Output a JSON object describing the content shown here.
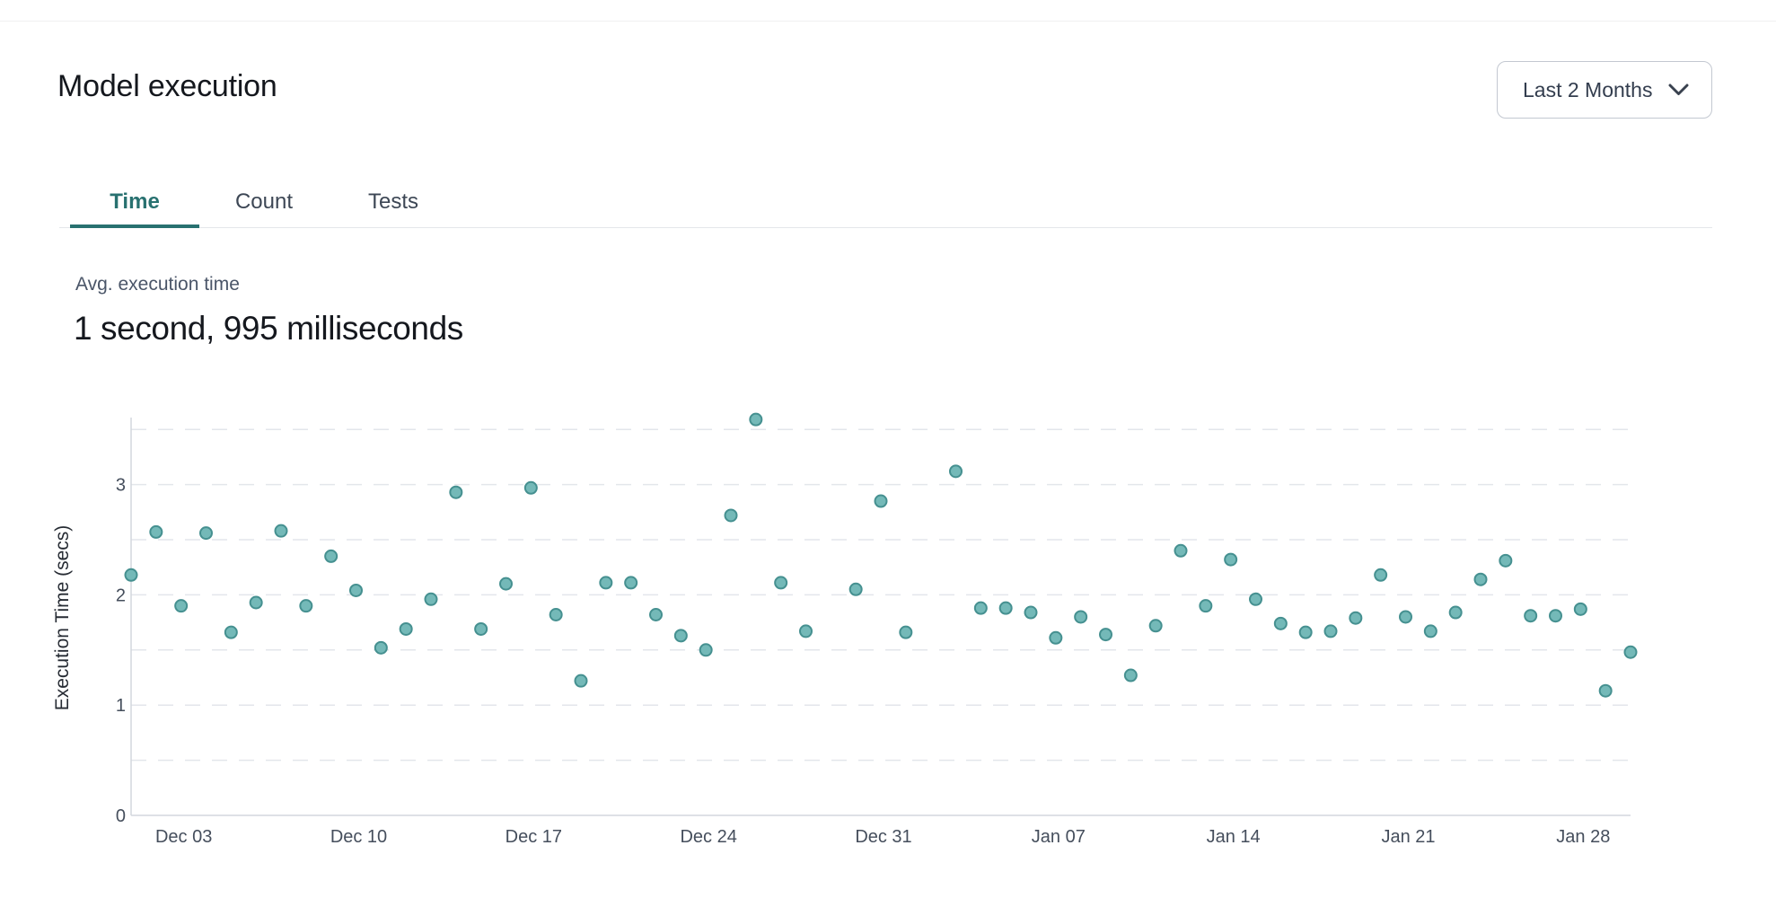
{
  "page": {
    "title": "Model execution"
  },
  "time_range": {
    "label": "Last 2 Months"
  },
  "tabs": [
    {
      "label": "Time",
      "active": true
    },
    {
      "label": "Count",
      "active": false
    },
    {
      "label": "Tests",
      "active": false
    }
  ],
  "stats": {
    "label": "Avg. execution time",
    "value": "1 second, 995 milliseconds"
  },
  "colors": {
    "accent_teal": "#287170",
    "dot_fill": "#74b9b8",
    "dot_stroke": "#459090",
    "grid_line": "#e3e6eb",
    "axis_line": "#d3d7dd",
    "tick_text": "#454e5c",
    "axis_label_text": "#262b33",
    "muted_text": "#4a5568",
    "dark_text": "#15181e"
  },
  "chart_data": {
    "type": "scatter",
    "title": "",
    "xlabel": "",
    "ylabel": "Execution Time (secs)",
    "ylim": [
      0,
      3.6
    ],
    "y_ticks": [
      0,
      1,
      2,
      3
    ],
    "grid": "dashed horizontal every 0.5 up to 3.5",
    "grid_step": 0.5,
    "grid_max": 3.5,
    "legend": "none",
    "x_ticks": [
      {
        "label": "Dec 03",
        "day": 2
      },
      {
        "label": "Dec 10",
        "day": 9
      },
      {
        "label": "Dec 17",
        "day": 16
      },
      {
        "label": "Dec 24",
        "day": 23
      },
      {
        "label": "Dec 31",
        "day": 30
      },
      {
        "label": "Jan 07",
        "day": 37
      },
      {
        "label": "Jan 14",
        "day": 44
      },
      {
        "label": "Jan 21",
        "day": 51
      },
      {
        "label": "Jan 28",
        "day": 58
      }
    ],
    "points": [
      {
        "date": "Dec 01",
        "day": 0,
        "secs": 2.18
      },
      {
        "date": "Dec 02",
        "day": 1,
        "secs": 2.57
      },
      {
        "date": "Dec 03",
        "day": 2,
        "secs": 1.9
      },
      {
        "date": "Dec 04",
        "day": 3,
        "secs": 2.56
      },
      {
        "date": "Dec 05",
        "day": 4,
        "secs": 1.66
      },
      {
        "date": "Dec 06",
        "day": 5,
        "secs": 1.93
      },
      {
        "date": "Dec 07",
        "day": 6,
        "secs": 2.58
      },
      {
        "date": "Dec 08",
        "day": 7,
        "secs": 1.9
      },
      {
        "date": "Dec 09",
        "day": 8,
        "secs": 2.35
      },
      {
        "date": "Dec 10",
        "day": 9,
        "secs": 2.04
      },
      {
        "date": "Dec 11",
        "day": 10,
        "secs": 1.52
      },
      {
        "date": "Dec 12",
        "day": 11,
        "secs": 1.69
      },
      {
        "date": "Dec 13",
        "day": 12,
        "secs": 1.96
      },
      {
        "date": "Dec 14",
        "day": 13,
        "secs": 2.93
      },
      {
        "date": "Dec 15",
        "day": 14,
        "secs": 1.69
      },
      {
        "date": "Dec 16",
        "day": 15,
        "secs": 2.1
      },
      {
        "date": "Dec 17",
        "day": 16,
        "secs": 2.97
      },
      {
        "date": "Dec 18",
        "day": 17,
        "secs": 1.82
      },
      {
        "date": "Dec 19",
        "day": 18,
        "secs": 1.22
      },
      {
        "date": "Dec 20",
        "day": 19,
        "secs": 2.11
      },
      {
        "date": "Dec 21",
        "day": 20,
        "secs": 2.11
      },
      {
        "date": "Dec 22",
        "day": 21,
        "secs": 1.82
      },
      {
        "date": "Dec 23",
        "day": 22,
        "secs": 1.63
      },
      {
        "date": "Dec 24",
        "day": 23,
        "secs": 1.5
      },
      {
        "date": "Dec 25",
        "day": 24,
        "secs": 2.72
      },
      {
        "date": "Dec 26",
        "day": 25,
        "secs": 3.59
      },
      {
        "date": "Dec 27",
        "day": 26,
        "secs": 2.11
      },
      {
        "date": "Dec 28",
        "day": 27,
        "secs": 1.67
      },
      {
        "date": "Dec 30",
        "day": 29,
        "secs": 2.05
      },
      {
        "date": "Dec 31",
        "day": 30,
        "secs": 2.85
      },
      {
        "date": "Jan 01",
        "day": 31,
        "secs": 1.66
      },
      {
        "date": "Jan 03",
        "day": 33,
        "secs": 3.12
      },
      {
        "date": "Jan 04",
        "day": 34,
        "secs": 1.88
      },
      {
        "date": "Jan 05",
        "day": 35,
        "secs": 1.88
      },
      {
        "date": "Jan 06",
        "day": 36,
        "secs": 1.84
      },
      {
        "date": "Jan 07",
        "day": 37,
        "secs": 1.61
      },
      {
        "date": "Jan 08",
        "day": 38,
        "secs": 1.8
      },
      {
        "date": "Jan 09",
        "day": 39,
        "secs": 1.64
      },
      {
        "date": "Jan 10",
        "day": 40,
        "secs": 1.27
      },
      {
        "date": "Jan 11",
        "day": 41,
        "secs": 1.72
      },
      {
        "date": "Jan 12",
        "day": 42,
        "secs": 2.4
      },
      {
        "date": "Jan 13",
        "day": 43,
        "secs": 1.9
      },
      {
        "date": "Jan 14",
        "day": 44,
        "secs": 2.32
      },
      {
        "date": "Jan 15",
        "day": 45,
        "secs": 1.96
      },
      {
        "date": "Jan 16",
        "day": 46,
        "secs": 1.74
      },
      {
        "date": "Jan 17",
        "day": 47,
        "secs": 1.66
      },
      {
        "date": "Jan 18",
        "day": 48,
        "secs": 1.67
      },
      {
        "date": "Jan 19",
        "day": 49,
        "secs": 1.79
      },
      {
        "date": "Jan 20",
        "day": 50,
        "secs": 2.18
      },
      {
        "date": "Jan 21",
        "day": 51,
        "secs": 1.8
      },
      {
        "date": "Jan 22",
        "day": 52,
        "secs": 1.67
      },
      {
        "date": "Jan 23",
        "day": 53,
        "secs": 1.84
      },
      {
        "date": "Jan 24",
        "day": 54,
        "secs": 2.14
      },
      {
        "date": "Jan 25",
        "day": 55,
        "secs": 2.31
      },
      {
        "date": "Jan 26",
        "day": 56,
        "secs": 1.81
      },
      {
        "date": "Jan 27",
        "day": 57,
        "secs": 1.81
      },
      {
        "date": "Jan 28",
        "day": 58,
        "secs": 1.87
      },
      {
        "date": "Jan 29",
        "day": 59,
        "secs": 1.13
      },
      {
        "date": "Jan 30",
        "day": 60,
        "secs": 1.48
      }
    ]
  }
}
